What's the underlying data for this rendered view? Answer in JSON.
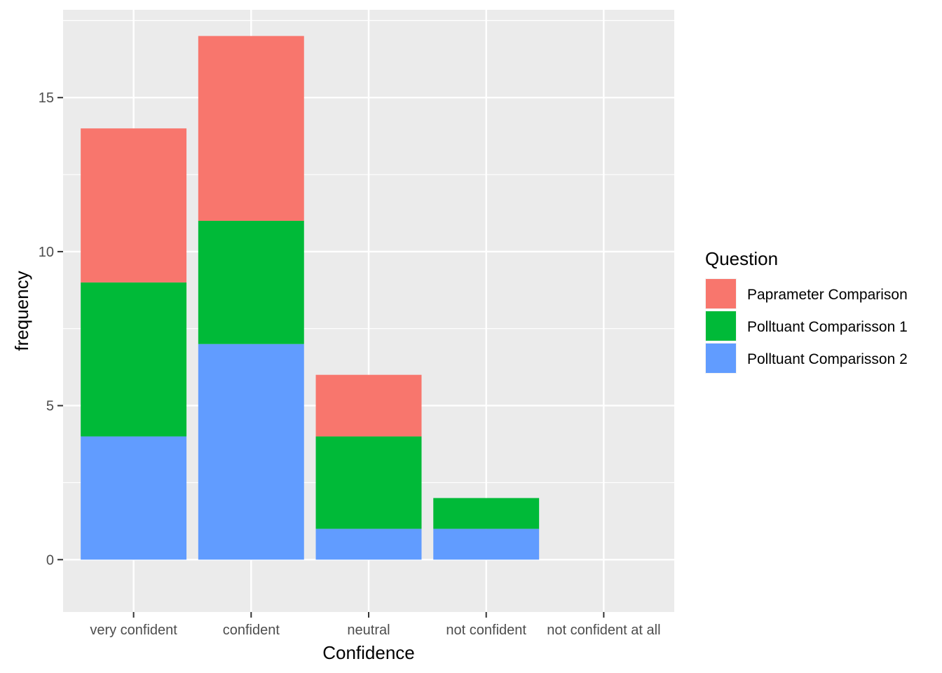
{
  "chart_data": {
    "type": "bar",
    "stacked": true,
    "title": "",
    "xlabel": "Confidence",
    "ylabel": "frequency",
    "categories": [
      "very confident",
      "confident",
      "neutral",
      "not confident",
      "not confident at all"
    ],
    "ylim": [
      -1.7,
      17.85
    ],
    "yticks": [
      0,
      5,
      10,
      15
    ],
    "grid": true,
    "legend": {
      "title": "Question",
      "position": "right"
    },
    "series": [
      {
        "name": "Polltuant Comparisson 2",
        "color": "#619CFF",
        "values": [
          4,
          7,
          1,
          1,
          0
        ]
      },
      {
        "name": "Polltuant Comparisson 1",
        "color": "#00BA38",
        "values": [
          5,
          4,
          3,
          1,
          0
        ]
      },
      {
        "name": "Paprameter Comparison",
        "color": "#F8766D",
        "values": [
          5,
          6,
          2,
          0,
          0
        ]
      }
    ],
    "legend_order": [
      "Paprameter Comparison",
      "Polltuant Comparisson 1",
      "Polltuant Comparisson 2"
    ]
  }
}
